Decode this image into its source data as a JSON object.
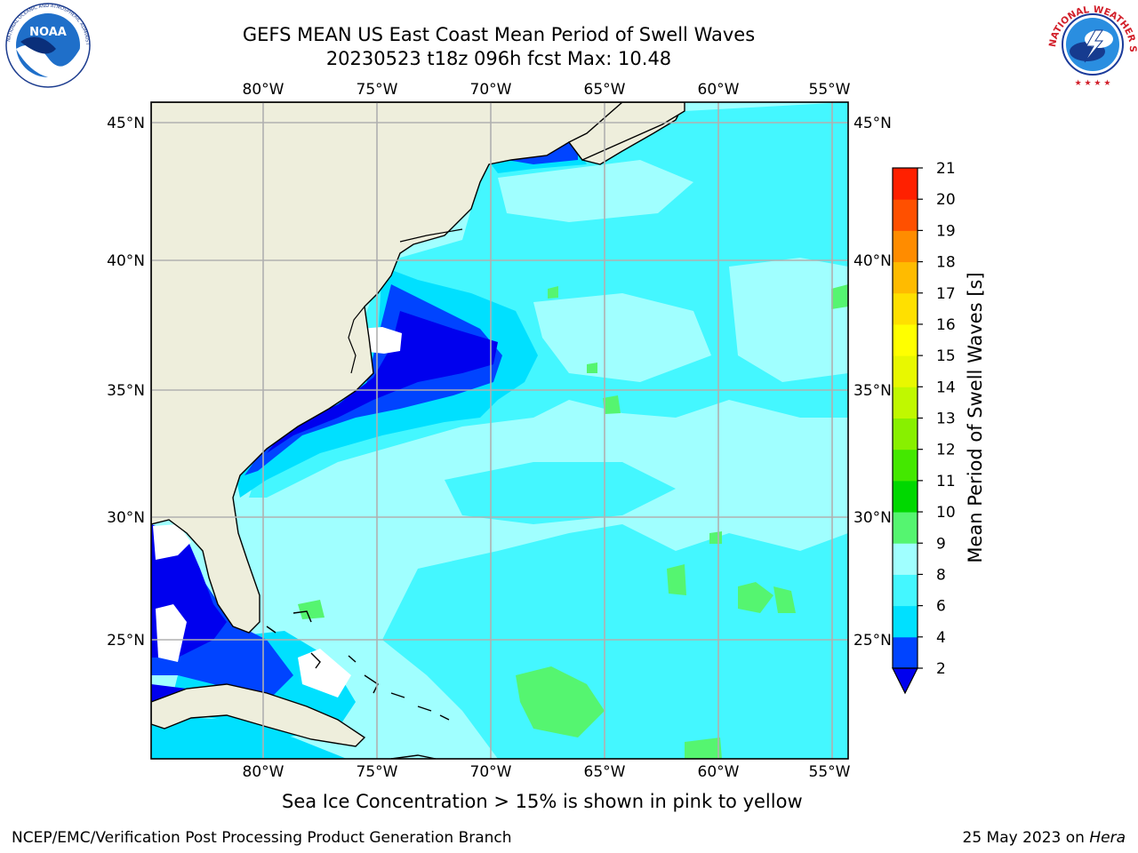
{
  "title_line1": "GEFS MEAN US East Coast Mean Period of Swell Waves",
  "title_line2": "20230523 t18z 096h fcst   Max: 10.48",
  "logos": {
    "left": "NOAA",
    "right": "NATIONAL WEATHER SERVICE"
  },
  "map": {
    "lon_labels": [
      "80°W",
      "75°W",
      "70°W",
      "65°W",
      "60°W",
      "55°W"
    ],
    "lat_labels": [
      "45°N",
      "40°N",
      "35°N",
      "30°N",
      "25°N"
    ],
    "lon_values": [
      -80,
      -75,
      -70,
      -65,
      -60,
      -55
    ],
    "lat_values": [
      45,
      40,
      35,
      30,
      25
    ],
    "extent": {
      "lon_min": -85,
      "lon_max": -54.3,
      "lat_min": 20.5,
      "lat_max": 45.7
    },
    "colors": {
      "land": "#eeeedc",
      "grid": "#b0b0b0",
      "coast": "#000000"
    }
  },
  "colorbar": {
    "label": "Mean Period of Swell Waves [s]",
    "tick_labels": [
      "2",
      "4",
      "6",
      "8",
      "9",
      "10",
      "11",
      "12",
      "13",
      "14",
      "15",
      "16",
      "17",
      "18",
      "19",
      "20",
      "21"
    ],
    "colors": [
      "#0044ff",
      "#00e0ff",
      "#44f7ff",
      "#a0ffff",
      "#55f570",
      "#00d800",
      "#44e800",
      "#88f000",
      "#c0f800",
      "#e8f800",
      "#ffff00",
      "#ffe000",
      "#ffbb00",
      "#ff8c00",
      "#ff5000",
      "#ff2000",
      "#ff0000"
    ],
    "under_color": "#0000ee"
  },
  "note": "Sea Ice Concentration > 15% is shown in pink to yellow",
  "credit": "NCEP/EMC/Verification Post Processing Product Generation Branch",
  "date": "25 May 2023 on",
  "date_machine": "Hera"
}
